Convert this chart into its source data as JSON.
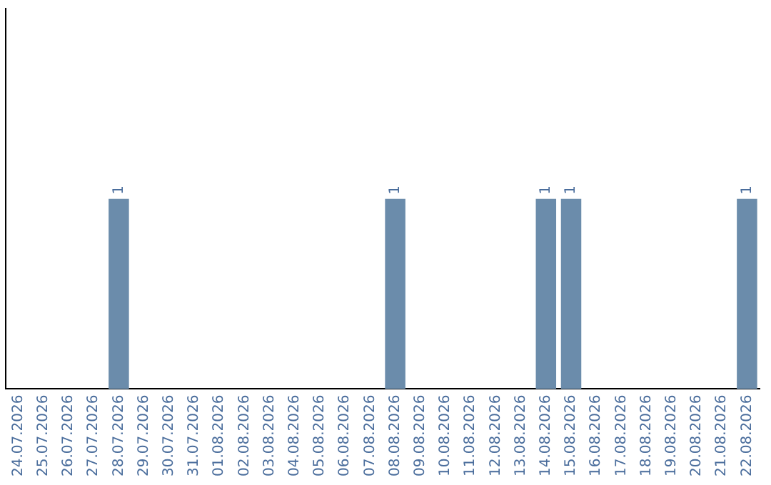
{
  "chart_data": {
    "type": "bar",
    "categories": [
      "24.07.2026",
      "25.07.2026",
      "26.07.2026",
      "27.07.2026",
      "28.07.2026",
      "29.07.2026",
      "30.07.2026",
      "31.07.2026",
      "01.08.2026",
      "02.08.2026",
      "03.08.2026",
      "04.08.2026",
      "05.08.2026",
      "06.08.2026",
      "07.08.2026",
      "08.08.2026",
      "09.08.2026",
      "10.08.2026",
      "11.08.2026",
      "12.08.2026",
      "13.08.2026",
      "14.08.2026",
      "15.08.2026",
      "16.08.2026",
      "17.08.2026",
      "18.08.2026",
      "19.08.2026",
      "20.08.2026",
      "21.08.2026",
      "22.08.2026"
    ],
    "values": [
      0,
      0,
      0,
      0,
      1,
      0,
      0,
      0,
      0,
      0,
      0,
      0,
      0,
      0,
      0,
      1,
      0,
      0,
      0,
      0,
      0,
      1,
      1,
      0,
      0,
      0,
      0,
      0,
      0,
      1
    ],
    "value_labels": [
      null,
      null,
      null,
      null,
      "1",
      null,
      null,
      null,
      null,
      null,
      null,
      null,
      null,
      null,
      null,
      "1",
      null,
      null,
      null,
      null,
      null,
      "1",
      "1",
      null,
      null,
      null,
      null,
      null,
      null,
      "1"
    ],
    "color": "#6b8cab",
    "ylim": [
      0,
      2
    ],
    "tick_labels": "x",
    "grid": false,
    "legend": false
  }
}
